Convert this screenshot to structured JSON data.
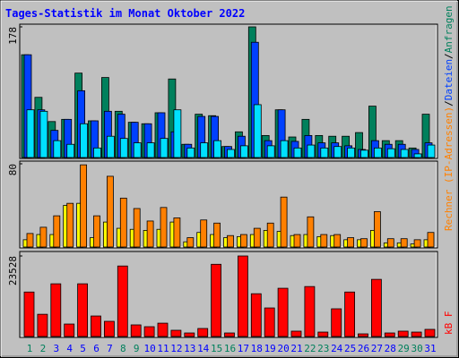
{
  "chart_data": [
    {
      "type": "bar",
      "title": "Tages-Statistik im Monat Oktober 2022",
      "title_color": "#0000ff",
      "ylim": [
        0,
        178
      ],
      "yticks": [
        178
      ],
      "legend_separator": "/",
      "series": [
        {
          "name": "Anfragen",
          "color": "#00805c",
          "values": [
            140,
            82,
            49,
            52,
            115,
            50,
            109,
            63,
            48,
            46,
            61,
            107,
            18,
            59,
            57,
            15,
            35,
            178,
            30,
            65,
            28,
            52,
            30,
            29,
            29,
            34,
            70,
            23,
            23,
            13,
            59
          ]
        },
        {
          "name": "Dateien",
          "color": "#0040ff",
          "values": [
            140,
            65,
            37,
            52,
            91,
            50,
            63,
            59,
            48,
            46,
            61,
            35,
            18,
            56,
            56,
            15,
            29,
            157,
            23,
            65,
            22,
            30,
            20,
            20,
            16,
            11,
            23,
            18,
            18,
            11,
            20
          ]
        },
        {
          "color": "#00e0ff",
          "values": [
            65,
            63,
            23,
            18,
            46,
            13,
            29,
            26,
            20,
            20,
            26,
            65,
            13,
            20,
            23,
            11,
            16,
            72,
            16,
            23,
            13,
            17,
            13,
            15,
            13,
            10,
            13,
            12,
            11,
            5,
            17
          ]
        }
      ]
    },
    {
      "type": "bar",
      "ylim": [
        0,
        80
      ],
      "yticks": [
        80
      ],
      "series": [
        {
          "color": "#ffff00",
          "values": [
            7,
            12,
            12,
            40,
            42,
            9,
            24,
            18,
            17,
            16,
            17,
            24,
            5,
            14,
            12,
            9,
            10,
            12,
            16,
            15,
            11,
            12,
            10,
            11,
            7,
            7,
            16,
            4,
            4,
            3,
            7
          ]
        },
        {
          "name": "Rechner (IP-Adressen)",
          "color": "#ff8000",
          "values": [
            13,
            19,
            30,
            42,
            79,
            30,
            68,
            47,
            37,
            25,
            38,
            28,
            9,
            26,
            23,
            11,
            12,
            18,
            23,
            48,
            12,
            29,
            12,
            12,
            9,
            8,
            34,
            8,
            8,
            7,
            14
          ]
        }
      ]
    },
    {
      "type": "bar",
      "ylim": [
        0,
        23528
      ],
      "yticks": [
        23528
      ],
      "categories": [
        "1",
        "2",
        "3",
        "4",
        "5",
        "6",
        "7",
        "8",
        "9",
        "10",
        "11",
        "12",
        "13",
        "14",
        "15",
        "16",
        "17",
        "18",
        "19",
        "20",
        "21",
        "22",
        "23",
        "24",
        "25",
        "26",
        "27",
        "28",
        "29",
        "30",
        "31"
      ],
      "category_colors": [
        "#00805c",
        "#00805c",
        "#0000ff",
        "#0000ff",
        "#0000ff",
        "#0000ff",
        "#0000ff",
        "#00805c",
        "#00805c",
        "#0000ff",
        "#0000ff",
        "#0000ff",
        "#0000ff",
        "#0000ff",
        "#00805c",
        "#00805c",
        "#0000ff",
        "#0000ff",
        "#0000ff",
        "#0000ff",
        "#0000ff",
        "#00805c",
        "#00805c",
        "#0000ff",
        "#0000ff",
        "#0000ff",
        "#0000ff",
        "#0000ff",
        "#00805c",
        "#00805c",
        "#0000ff"
      ],
      "series": [
        {
          "name": "kB F",
          "color": "#ff0000",
          "values": [
            13000,
            6500,
            15400,
            3650,
            15400,
            6000,
            4440,
            20600,
            3400,
            2870,
            3900,
            1830,
            1040,
            2350,
            21100,
            1040,
            23528,
            12500,
            8350,
            14100,
            1570,
            14600,
            1300,
            8100,
            13000,
            780,
            16700,
            1040,
            1570,
            1300,
            2090
          ]
        }
      ]
    }
  ]
}
